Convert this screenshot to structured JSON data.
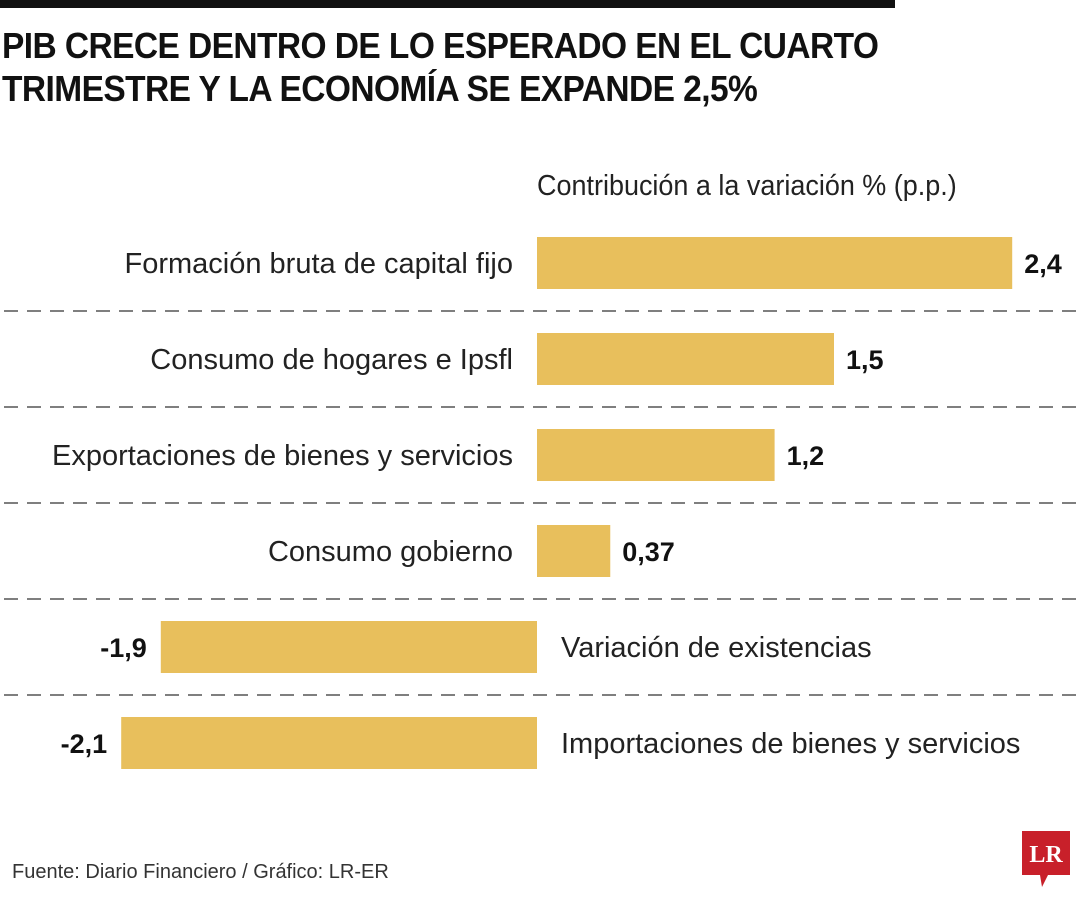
{
  "header": {
    "title_line1": "PIB CRECE DENTRO DE LO ESPERADO EN EL CUARTO",
    "title_line2": "TRIMESTRE Y LA ECONOMÍA SE EXPANDE 2,5%"
  },
  "chart_data": {
    "type": "bar",
    "orientation": "horizontal",
    "title": "PIB CRECE DENTRO DE LO ESPERADO EN EL CUARTO TRIMESTRE Y LA ECONOMÍA SE EXPANDE 2,5%",
    "subtitle": "Contribución a la variación % (p.p.)",
    "xlabel": "",
    "ylabel": "",
    "categories": [
      "Formación bruta de capital fijo",
      "Consumo de hogares e Ipsfl",
      "Exportaciones de bienes y servicios",
      "Consumo gobierno",
      "Variación de existencias",
      "Importaciones de bienes y servicios"
    ],
    "values": [
      2.4,
      1.5,
      1.2,
      0.37,
      -1.9,
      -2.1
    ],
    "value_labels": [
      "2,4",
      "1,5",
      "1,2",
      "0,37",
      "-1,9",
      "-2,1"
    ],
    "xlim": [
      -2.1,
      2.4
    ],
    "bar_color": "#E8BF5C",
    "grid": "dashed separators between rows",
    "legend": "none"
  },
  "footer": {
    "source": "Fuente: Diario Financiero / Gráfico: LR-ER",
    "logo_text": "LR",
    "logo_color": "#C8202A"
  }
}
